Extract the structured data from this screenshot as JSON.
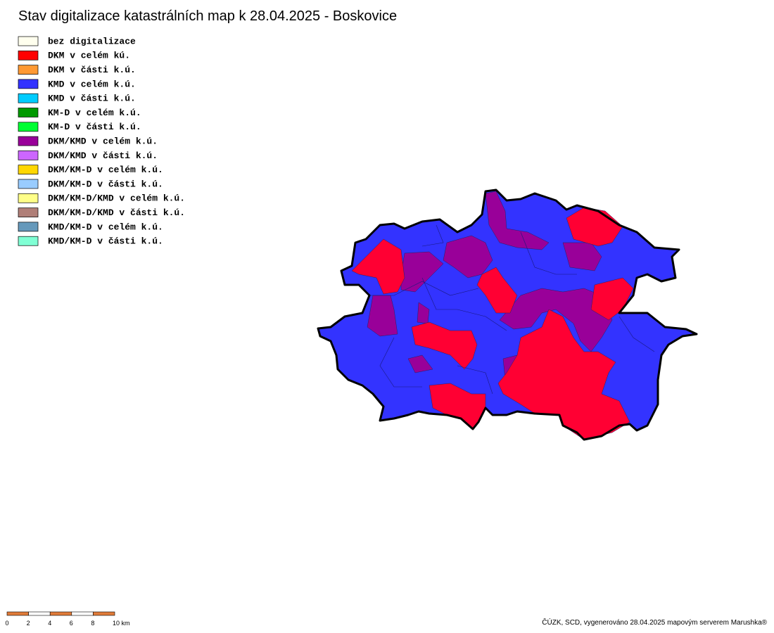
{
  "title": "Stav digitalizace katastrálních map k 28.04.2025 - Boskovice",
  "legend": [
    {
      "label": "bez digitalizace",
      "color": "#ffffee"
    },
    {
      "label": "DKM v celém kú.",
      "color": "#ff0000"
    },
    {
      "label": "DKM v části k.ú.",
      "color": "#ff9933"
    },
    {
      "label": "KMD v celém k.ú.",
      "color": "#3333ff"
    },
    {
      "label": "KMD v části k.ú.",
      "color": "#00ccff"
    },
    {
      "label": "KM-D v celém k.ú.",
      "color": "#009900"
    },
    {
      "label": "KM-D v části k.ú.",
      "color": "#00ff33"
    },
    {
      "label": "DKM/KMD v celém k.ú.",
      "color": "#990099"
    },
    {
      "label": "DKM/KMD v části k.ú.",
      "color": "#cc66ff"
    },
    {
      "label": "DKM/KM-D v celém k.ú.",
      "color": "#ffd700"
    },
    {
      "label": "DKM/KM-D v části k.ú.",
      "color": "#99ccff"
    },
    {
      "label": "DKM/KM-D/KMD v celém k.ú.",
      "color": "#ffff88"
    },
    {
      "label": "DKM/KM-D/KMD v části k.ú.",
      "color": "#b07f78"
    },
    {
      "label": "KMD/KM-D v celém k.ú.",
      "color": "#6699bb"
    },
    {
      "label": "KMD/KM-D v části k.ú.",
      "color": "#80ffd4"
    }
  ],
  "scale_bar": {
    "labels": [
      "0",
      "2",
      "4",
      "6",
      "8",
      "10 km"
    ]
  },
  "credit": "ČÚZK, SCD, vygenerováno 28.04.2025 mapovým serverem Marushka®"
}
